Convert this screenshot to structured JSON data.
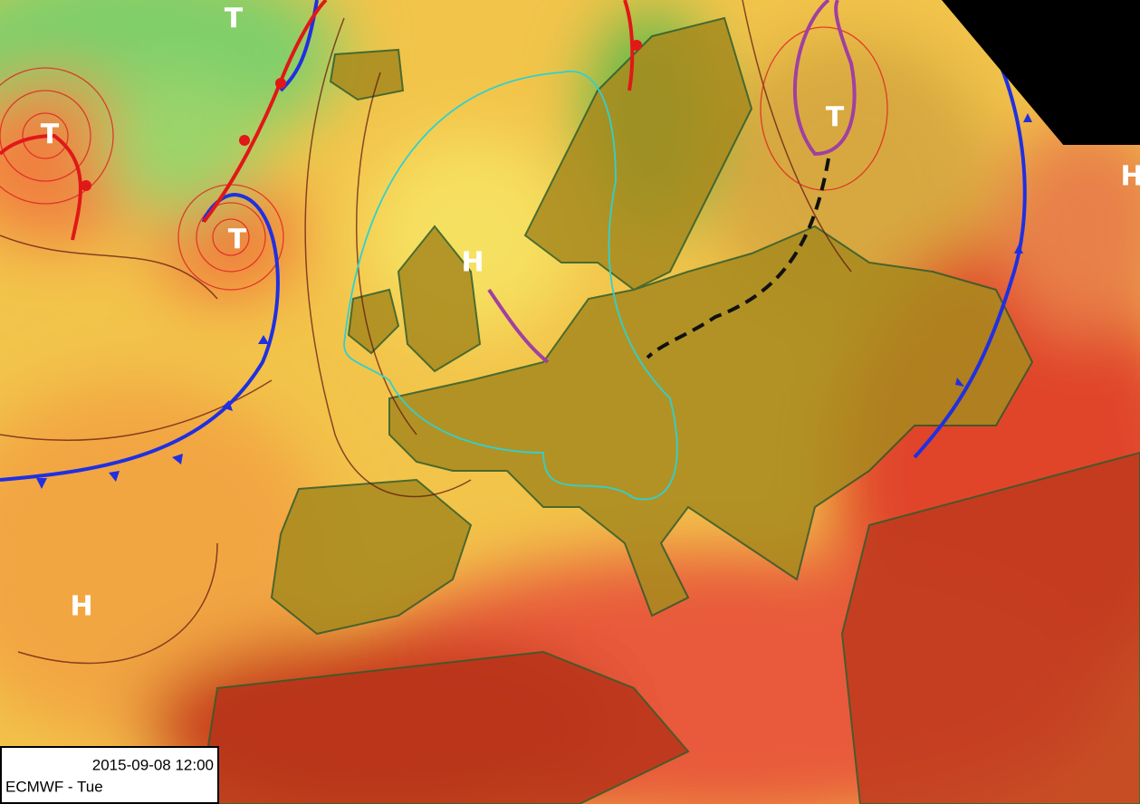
{
  "pressure_centers": [
    {
      "label": "T"
    },
    {
      "label": "T"
    },
    {
      "label": "T"
    },
    {
      "label": "T"
    },
    {
      "label": "H"
    },
    {
      "label": "H"
    },
    {
      "label": "H"
    }
  ],
  "info_box": {
    "timestamp": "2015-09-08 12:00",
    "model": "ECMWF - Tue"
  }
}
